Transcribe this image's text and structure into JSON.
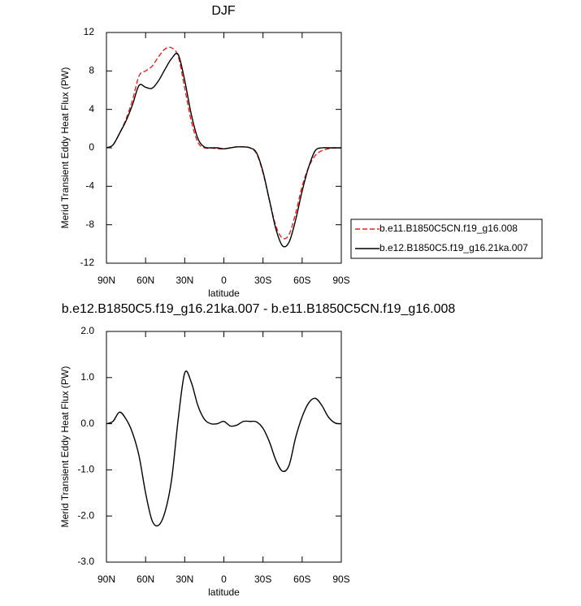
{
  "chart_data": [
    {
      "type": "line",
      "title": "DJF",
      "xlabel": "latitude",
      "ylabel": "Merid Transient Eddy Heat Flux (PW)",
      "x": [
        90,
        85,
        80,
        75,
        70,
        65,
        60,
        55,
        50,
        45,
        40,
        35,
        30,
        25,
        20,
        15,
        10,
        5,
        0,
        -5,
        -10,
        -15,
        -20,
        -25,
        -30,
        -35,
        -40,
        -45,
        -50,
        -55,
        -60,
        -65,
        -70,
        -75,
        -80,
        -85,
        -90
      ],
      "xlim": [
        90,
        -90
      ],
      "xticks": [
        {
          "value": 90,
          "label": "90N"
        },
        {
          "value": 60,
          "label": "60N"
        },
        {
          "value": 30,
          "label": "30N"
        },
        0,
        {
          "value": -30,
          "label": "30S"
        },
        {
          "value": -60,
          "label": "60S"
        },
        {
          "value": -90,
          "label": "90S"
        }
      ],
      "ylim": [
        -12,
        12
      ],
      "yticks": [
        12,
        8,
        4,
        0,
        -4,
        -8,
        -12
      ],
      "legend": "right",
      "series": [
        {
          "name": "b.e11.B1850C5CN.f19_g16.008",
          "color": "#e8231f",
          "linestyle": "dashed",
          "values": [
            0,
            0.3,
            1.5,
            3,
            5,
            7.5,
            8,
            8.5,
            9.5,
            10.3,
            10.4,
            9.5,
            6.2,
            2.8,
            0.6,
            0,
            0,
            -0.1,
            -0.1,
            0,
            0.1,
            0.1,
            0,
            -0.6,
            -2.6,
            -5.5,
            -8.2,
            -9.4,
            -9,
            -6.8,
            -4,
            -2,
            -0.8,
            -0.3,
            -0.1,
            0,
            0
          ]
        },
        {
          "name": "b.e12.B1850C5.f19_g16.21ka.007",
          "color": "#000000",
          "linestyle": "solid",
          "values": [
            0,
            0.3,
            1.5,
            2.8,
            4.5,
            6.5,
            6.3,
            6.2,
            7,
            8.2,
            9.3,
            9.7,
            7,
            3.5,
            1,
            0.1,
            0,
            0,
            -0.1,
            0,
            0.1,
            0.1,
            0,
            -0.5,
            -2.5,
            -5.5,
            -8.5,
            -10.2,
            -9.8,
            -7.5,
            -4.5,
            -2,
            -0.3,
            0,
            0,
            0,
            0
          ]
        }
      ]
    },
    {
      "type": "line",
      "title": "b.e12.B1850C5.f19_g16.21ka.007 - b.e11.B1850C5CN.f19_g16.008",
      "xlabel": "latitude",
      "ylabel": "Merid Transient Eddy Heat Flux (PW)",
      "x": [
        90,
        85,
        80,
        75,
        70,
        65,
        60,
        55,
        50,
        45,
        40,
        35,
        30,
        25,
        20,
        15,
        10,
        5,
        0,
        -5,
        -10,
        -15,
        -20,
        -25,
        -30,
        -35,
        -40,
        -45,
        -50,
        -55,
        -60,
        -65,
        -70,
        -75,
        -80,
        -85,
        -90
      ],
      "xlim": [
        90,
        -90
      ],
      "xticks": [
        {
          "value": 90,
          "label": "90N"
        },
        {
          "value": 60,
          "label": "60N"
        },
        {
          "value": 30,
          "label": "30N"
        },
        0,
        {
          "value": -30,
          "label": "30S"
        },
        {
          "value": -60,
          "label": "60S"
        },
        {
          "value": -90,
          "label": "90S"
        }
      ],
      "ylim": [
        -3,
        2
      ],
      "yticks": [
        {
          "value": 2,
          "label": "2.0"
        },
        {
          "value": 1,
          "label": "1.0"
        },
        {
          "value": 0,
          "label": "0.0"
        },
        {
          "value": -1,
          "label": "-1.0"
        },
        {
          "value": -2,
          "label": "-2.0"
        },
        {
          "value": -3,
          "label": "-3.0"
        }
      ],
      "color": "#000000",
      "values": [
        0,
        0.05,
        0.25,
        0.1,
        -0.2,
        -0.7,
        -1.5,
        -2.1,
        -2.2,
        -1.9,
        -1.2,
        0.1,
        1.1,
        0.9,
        0.4,
        0.1,
        0,
        0,
        0.05,
        -0.05,
        -0.03,
        0.05,
        0.05,
        0.04,
        -0.1,
        -0.4,
        -0.8,
        -1.03,
        -0.9,
        -0.3,
        0.15,
        0.45,
        0.55,
        0.4,
        0.15,
        0.02,
        0
      ]
    }
  ]
}
